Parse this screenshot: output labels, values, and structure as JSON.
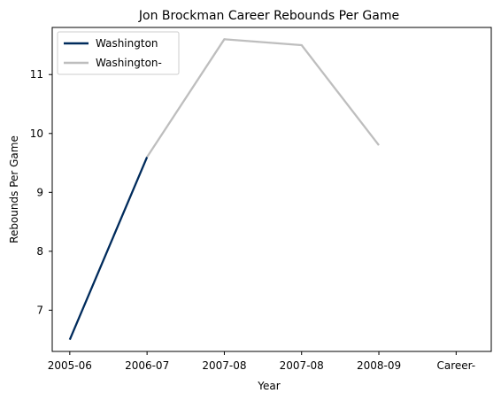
{
  "chart_data": {
    "type": "line",
    "title": "Jon Brockman Career Rebounds Per Game",
    "xlabel": "Year",
    "ylabel": "Rebounds Per Game",
    "categories": [
      "2005-06",
      "2006-07",
      "2007-08",
      "2007-08",
      "2008-09",
      "Career-"
    ],
    "series": [
      {
        "name": "Washington",
        "color": "#002b5c",
        "points": [
          {
            "x": 0,
            "y": 6.5
          },
          {
            "x": 1,
            "y": 9.6
          }
        ]
      },
      {
        "name": "Washington-",
        "color": "#bebebe",
        "points": [
          {
            "x": 1,
            "y": 9.6
          },
          {
            "x": 2,
            "y": 11.6
          },
          {
            "x": 3,
            "y": 11.5
          },
          {
            "x": 4,
            "y": 9.8
          }
        ]
      }
    ],
    "x_ticks": [
      0,
      1,
      2,
      3,
      4,
      5
    ],
    "y_ticks": [
      7,
      8,
      9,
      10,
      11
    ],
    "xlim": [
      -0.2,
      4.2
    ],
    "ylim": [
      6.3,
      11.8
    ],
    "legend_position": "top-left",
    "grid": false
  }
}
